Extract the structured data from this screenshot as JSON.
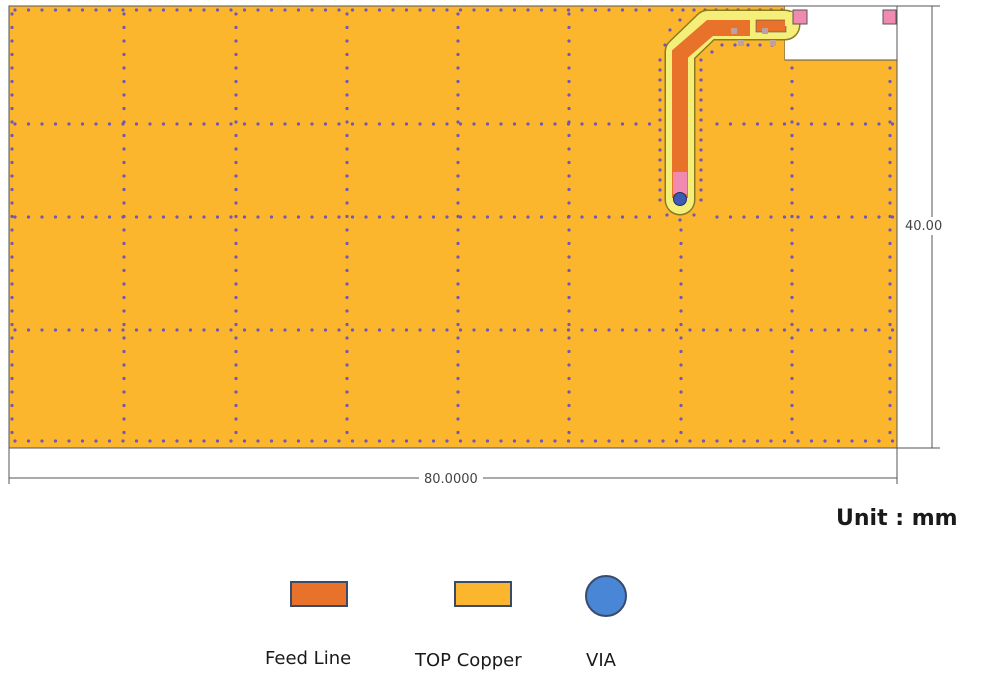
{
  "dimensions": {
    "height_label": "40.00",
    "width_label": "80.0000"
  },
  "unit_label": "Unit : mm",
  "legend": [
    {
      "label": "Feed Line",
      "color": "#E8722A",
      "shape": "rectangle"
    },
    {
      "label": "TOP Copper",
      "color": "#FBB62E",
      "shape": "rectangle"
    },
    {
      "label": "VIA",
      "color": "#4A86D6",
      "shape": "circle"
    }
  ],
  "colors": {
    "top_copper": "#FBB62E",
    "feed_line": "#E8722A",
    "feed_line_outline": "#F5EF7A",
    "via_dots": "#6E57B8",
    "via": "#3B5BB5",
    "pad": "#F08AB0",
    "dimension_line": "#555555"
  }
}
